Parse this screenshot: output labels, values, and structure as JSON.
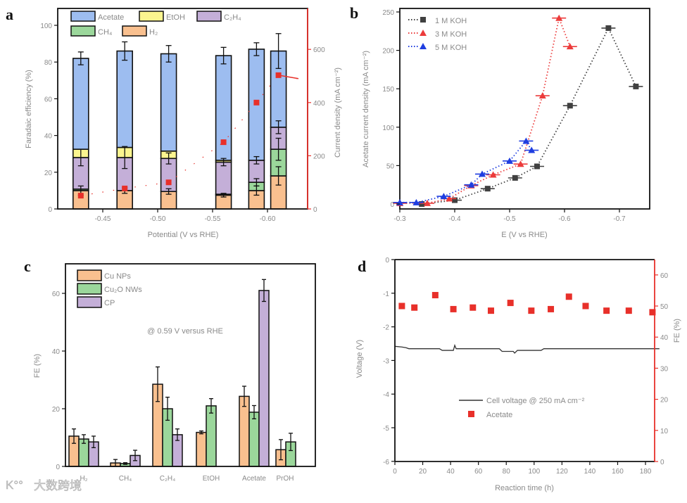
{
  "chart_data": [
    {
      "panel": "a",
      "type": "bar",
      "stacked": true,
      "xlabel": "Potential (V vs RHE)",
      "ylabel": "Faradaic efficiency (%)",
      "y2label": "Current density (mA cm⁻²)",
      "ylim": [
        0,
        110
      ],
      "y2lim": [
        0,
        730
      ],
      "xticks": [
        -0.45,
        -0.5,
        -0.55,
        -0.6
      ],
      "xtick_labels": [
        "-0.45",
        "-0.50",
        "-0.55",
        "-0.60"
      ],
      "yticks": [
        0,
        20,
        40,
        60,
        80,
        100
      ],
      "y2ticks": [
        0,
        200,
        400,
        600
      ],
      "potentials": [
        -0.43,
        -0.47,
        -0.51,
        -0.56,
        -0.59,
        -0.61
      ],
      "series": [
        {
          "name": "H₂",
          "color": "#f9c08f",
          "values": [
            10,
            10,
            9.5,
            7.5,
            10,
            18
          ],
          "errors": [
            2.5,
            1.5,
            1.5,
            1,
            2.5,
            5
          ]
        },
        {
          "name": "CH₄",
          "color": "#9bd79b",
          "values": [
            0.8,
            0,
            0,
            0.5,
            4.5,
            14.5
          ],
          "errors": [
            0,
            0,
            0,
            0,
            2,
            6
          ]
        },
        {
          "name": "C₂H₄",
          "color": "#c4afd8",
          "values": [
            17.2,
            18,
            18,
            17.5,
            12,
            12
          ],
          "errors": [
            4.5,
            6,
            3,
            2,
            2,
            3.5
          ]
        },
        {
          "name": "EtOH",
          "color": "#fbf58f",
          "values": [
            4.5,
            5.5,
            4,
            1,
            0,
            0
          ],
          "errors": [
            0,
            0,
            0,
            0,
            0,
            0
          ]
        },
        {
          "name": "Acetate",
          "color": "#9dbdf0",
          "values": [
            49.5,
            52.5,
            53,
            57,
            60.5,
            41.5
          ],
          "errors": [
            3.5,
            5,
            4.5,
            4.5,
            3.5,
            9.5
          ]
        }
      ],
      "legend_order": [
        "Acetate",
        "EtOH",
        "C₂H₄",
        "CH₄",
        "H₂"
      ],
      "current_density": [
        50,
        77,
        100,
        251,
        400,
        503
      ],
      "current_color": "#e8302a"
    },
    {
      "panel": "b",
      "type": "scatter",
      "xlabel": "E (V vs RHE)",
      "ylabel": "Acetate current density (mA cm⁻²)",
      "xlim": [
        -0.3,
        -0.755
      ],
      "ylim": [
        0,
        250
      ],
      "xticks": [
        -0.3,
        -0.4,
        -0.5,
        -0.6,
        -0.7
      ],
      "xtick_labels": [
        "-0.3",
        "-0.4",
        "-0.5",
        "-0.6",
        "-0.7"
      ],
      "yticks": [
        0,
        50,
        100,
        150,
        200,
        250
      ],
      "series": [
        {
          "name": "1 M KOH",
          "color": "#404040",
          "marker": "square",
          "x": [
            -0.34,
            -0.4,
            -0.46,
            -0.51,
            -0.55,
            -0.61,
            -0.68,
            -0.73
          ],
          "y": [
            0,
            5,
            20,
            34,
            49,
            128,
            229,
            153
          ]
        },
        {
          "name": "3 M KOH",
          "color": "#ec3b3b",
          "marker": "triangle",
          "x": [
            -0.3,
            -0.35,
            -0.39,
            -0.43,
            -0.47,
            -0.52,
            -0.56,
            -0.59,
            -0.61
          ],
          "y": [
            1,
            1,
            7,
            24,
            38,
            52,
            141,
            242,
            205
          ]
        },
        {
          "name": "5 M KOH",
          "color": "#1f3ee0",
          "marker": "triangle",
          "x": [
            -0.3,
            -0.33,
            -0.38,
            -0.43,
            -0.45,
            -0.5,
            -0.53,
            -0.54
          ],
          "y": [
            2,
            2,
            10,
            25,
            39,
            56,
            82,
            70
          ]
        }
      ]
    },
    {
      "panel": "c",
      "type": "bar",
      "ylabel": "FE (%)",
      "ylim": [
        0,
        70
      ],
      "yticks": [
        0,
        20,
        40,
        60
      ],
      "annotation": "@ 0.59 V versus RHE",
      "categories": [
        "H₂",
        "CH₄",
        "C₂H₄",
        "EtOH",
        "Acetate",
        "PrOH"
      ],
      "series": [
        {
          "name": "Cu NPs",
          "color": "#f9c08f",
          "values": [
            10.5,
            1.2,
            28.5,
            11.8,
            24.3,
            5.8
          ],
          "errors": [
            2.5,
            1.2,
            6,
            0.5,
            3.5,
            3.5
          ]
        },
        {
          "name": "Cu₂O NWs",
          "color": "#9bd79b",
          "values": [
            9.5,
            1,
            20,
            21,
            18.8,
            8.5
          ],
          "errors": [
            1.5,
            0.3,
            4,
            2.5,
            2.3,
            3
          ]
        },
        {
          "name": "CP",
          "color": "#c4afd8",
          "values": [
            8.5,
            3.8,
            11,
            null,
            61,
            null
          ],
          "errors": [
            2,
            1.8,
            2,
            null,
            3.8,
            null
          ]
        }
      ]
    },
    {
      "panel": "d",
      "type": "line",
      "xlabel": "Reaction time (h)",
      "ylabel": "Voltage (V)",
      "y2label": "FE (%)",
      "xlim": [
        0,
        190
      ],
      "ylim": [
        -6,
        0
      ],
      "y2lim": [
        0,
        65
      ],
      "xticks": [
        0,
        20,
        40,
        60,
        80,
        100,
        120,
        140,
        160,
        180
      ],
      "yticks": [
        0,
        -1,
        -2,
        -3,
        -4,
        -5,
        -6
      ],
      "y2ticks": [
        0,
        10,
        20,
        30,
        40,
        50,
        60
      ],
      "series": [
        {
          "name": "Cell voltage @ 250 mA cm⁻²",
          "color": "#333333",
          "x": [
            0,
            5,
            8,
            10,
            32,
            34,
            42,
            43,
            44,
            45,
            75,
            77,
            85,
            86,
            88,
            105,
            107,
            190
          ],
          "y": [
            -2.58,
            -2.6,
            -2.62,
            -2.65,
            -2.65,
            -2.7,
            -2.7,
            -2.55,
            -2.65,
            -2.65,
            -2.65,
            -2.73,
            -2.73,
            -2.78,
            -2.7,
            -2.7,
            -2.65,
            -2.65
          ]
        },
        {
          "name": "Acetate",
          "color": "#e8302a",
          "axis": "right",
          "x": [
            5,
            14,
            29,
            42,
            56,
            69,
            83,
            98,
            112,
            125,
            137,
            152,
            168,
            185
          ],
          "y": [
            50,
            49.5,
            53.5,
            49,
            49.5,
            48.5,
            51,
            48.5,
            49,
            53,
            50,
            48.5,
            48.5,
            48
          ]
        }
      ]
    }
  ],
  "panel_labels": [
    "a",
    "b",
    "c",
    "d"
  ],
  "watermark": {
    "logo": "K°°",
    "text": "大数跨境"
  }
}
